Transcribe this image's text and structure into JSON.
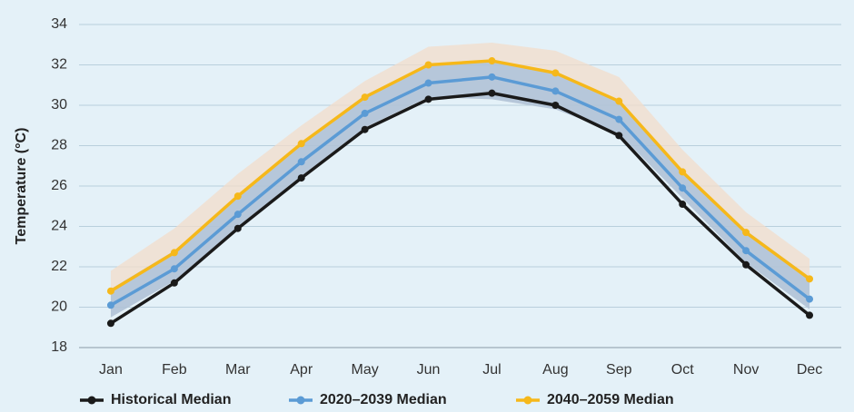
{
  "chart_data": {
    "type": "line",
    "y_label": "Temperature (°C)",
    "categories": [
      "Jan",
      "Feb",
      "Mar",
      "Apr",
      "May",
      "Jun",
      "Jul",
      "Aug",
      "Sep",
      "Oct",
      "Nov",
      "Dec"
    ],
    "ylim": [
      18,
      34
    ],
    "yticks": [
      18,
      20,
      22,
      24,
      26,
      28,
      30,
      32,
      34
    ],
    "grid": true,
    "legend": "bottom",
    "series": [
      {
        "name": "Historical Median",
        "color": "#1a1a1a",
        "values": [
          19.2,
          21.2,
          23.9,
          26.4,
          28.8,
          30.3,
          30.6,
          30.0,
          28.5,
          25.1,
          22.1,
          19.6
        ]
      },
      {
        "name": "2020–2039 Median",
        "color": "#5b9bd5",
        "values": [
          20.1,
          21.9,
          24.6,
          27.2,
          29.6,
          31.1,
          31.4,
          30.7,
          29.3,
          25.9,
          22.8,
          20.4
        ],
        "range": {
          "color": "#8fb5dc",
          "low": [
            19.5,
            21.3,
            24.0,
            26.5,
            28.9,
            30.4,
            30.3,
            29.8,
            28.6,
            25.4,
            22.2,
            19.9
          ],
          "high": [
            20.9,
            22.8,
            25.5,
            28.1,
            30.5,
            32.0,
            32.2,
            31.6,
            30.2,
            26.8,
            23.8,
            21.5
          ]
        }
      },
      {
        "name": "2040–2059 Median",
        "color": "#f6b81a",
        "values": [
          20.8,
          22.7,
          25.5,
          28.1,
          30.4,
          32.0,
          32.2,
          31.6,
          30.2,
          26.7,
          23.7,
          21.4
        ],
        "range": {
          "color": "#f3dccb",
          "low": [
            19.5,
            21.3,
            24.0,
            26.5,
            28.9,
            30.4,
            30.3,
            29.8,
            28.6,
            25.4,
            22.2,
            19.9
          ],
          "high": [
            21.8,
            23.9,
            26.6,
            29.0,
            31.2,
            32.9,
            33.1,
            32.7,
            31.4,
            27.8,
            24.7,
            22.4
          ]
        }
      }
    ]
  }
}
